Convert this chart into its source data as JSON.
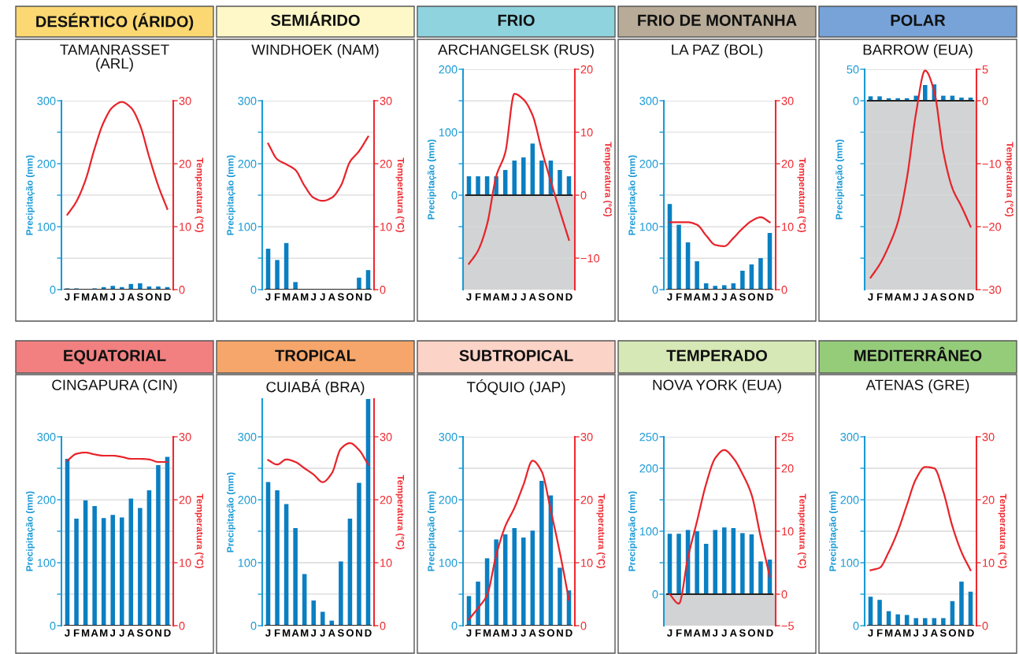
{
  "chart_data": [
    {
      "type": "bar",
      "title": "DESÉRTICO (ÁRIDO)",
      "subtitle": "TAMANRASSET\n(ARL)",
      "ylabel": "Precipitação (mm)",
      "y2label": "Temperatura (°C)",
      "categories": [
        "J",
        "F",
        "M",
        "A",
        "M",
        "J",
        "J",
        "A",
        "S",
        "O",
        "N",
        "D"
      ],
      "grid": "y",
      "ylim": [
        0,
        300
      ],
      "yticks": [
        0,
        {
          "value": 50,
          "label": null
        },
        100,
        {
          "value": 150,
          "label": null
        },
        200,
        {
          "value": 250,
          "label": null
        },
        300
      ],
      "y2lim": [
        0,
        30
      ],
      "y2ticks": [
        0,
        10,
        20,
        30
      ],
      "series": [
        {
          "type": "bar",
          "color": "#0a7fc2",
          "values": [
            2,
            2,
            0,
            2,
            4,
            6,
            4,
            9,
            10,
            5,
            5,
            4
          ]
        },
        {
          "type": "line",
          "axis": "y2",
          "color": "#e8232a",
          "values": [
            11.9,
            14,
            17.4,
            22.4,
            26.6,
            29,
            29.8,
            28.9,
            26.1,
            21.1,
            16.5,
            12.8
          ]
        }
      ]
    },
    {
      "type": "bar",
      "title": "SEMIÁRIDO",
      "subtitle": "WINDHOEK (NAM)",
      "ylabel": "Precipitação (mm)",
      "y2label": "Temperatura (°C)",
      "categories": [
        "J",
        "F",
        "M",
        "A",
        "M",
        "J",
        "J",
        "A",
        "S",
        "O",
        "N",
        "D"
      ],
      "grid": "y",
      "ylim": [
        0,
        300
      ],
      "yticks": [
        0,
        {
          "value": 50,
          "label": null
        },
        100,
        {
          "value": 150,
          "label": null
        },
        200,
        {
          "value": 250,
          "label": null
        },
        300
      ],
      "y2lim": [
        0,
        30
      ],
      "y2ticks": [
        0,
        10,
        20,
        30
      ],
      "series": [
        {
          "type": "bar",
          "color": "#0a7fc2",
          "values": [
            65,
            47,
            74,
            12,
            0,
            0,
            0,
            0,
            0,
            0,
            19,
            31
          ]
        },
        {
          "type": "line",
          "axis": "y2",
          "color": "#e8232a",
          "values": [
            23.2,
            20.7,
            19.9,
            19,
            16.5,
            14.6,
            14.1,
            14.6,
            16.5,
            20.3,
            22,
            24.3
          ]
        }
      ]
    },
    {
      "type": "bar",
      "title": "FRIO",
      "subtitle": "ARCHANGELSK (RUS)",
      "ylabel": "Precipitação (mm)",
      "y2label": "Temperatura (°C)",
      "categories": [
        "J",
        "F",
        "M",
        "A",
        "M",
        "J",
        "J",
        "A",
        "S",
        "O",
        "N",
        "D"
      ],
      "grid": "y",
      "ylim": [
        -150,
        200
      ],
      "yticks": [
        {
          "value": -100,
          "label": null
        },
        {
          "value": -50,
          "label": null
        },
        0,
        {
          "value": 50,
          "label": null
        },
        100,
        {
          "value": 150,
          "label": null
        },
        200
      ],
      "y2lim": [
        -15,
        20
      ],
      "y2ticks": [
        {
          "value": -10,
          "label": "−10"
        },
        0,
        10,
        20
      ],
      "bands": [
        {
          "axis": "y",
          "from": -150,
          "to": 0,
          "color": "#d1d3d4"
        }
      ],
      "series": [
        {
          "type": "bar",
          "color": "#0a7fc2",
          "values": [
            30,
            30,
            30,
            30,
            40,
            55,
            60,
            82,
            55,
            55,
            40,
            30
          ]
        },
        {
          "type": "line",
          "axis": "y2",
          "color": "#e8232a",
          "values": [
            -10.9,
            -8.8,
            -4.6,
            3,
            6.8,
            16.1,
            15.2,
            12.7,
            7.2,
            2.2,
            -2.5,
            -7.1
          ]
        }
      ]
    },
    {
      "type": "bar",
      "title": "FRIO DE MONTANHA",
      "subtitle": "LA PAZ (BOL)",
      "ylabel": "Precipitação (mm)",
      "y2label": "Temperatura (°C)",
      "categories": [
        "J",
        "F",
        "M",
        "A",
        "M",
        "J",
        "J",
        "A",
        "S",
        "O",
        "N",
        "D"
      ],
      "grid": "y",
      "ylim": [
        0,
        300
      ],
      "yticks": [
        0,
        {
          "value": 50,
          "label": null
        },
        100,
        {
          "value": 150,
          "label": null
        },
        200,
        {
          "value": 250,
          "label": null
        },
        300
      ],
      "y2lim": [
        0,
        30
      ],
      "y2ticks": [
        0,
        10,
        20,
        30
      ],
      "series": [
        {
          "type": "bar",
          "color": "#0a7fc2",
          "values": [
            136,
            103,
            75,
            45,
            10,
            6,
            7,
            10,
            30,
            40,
            50,
            90
          ]
        },
        {
          "type": "line",
          "axis": "y2",
          "color": "#e8232a",
          "values": [
            10.7,
            10.7,
            10.7,
            10.3,
            8.6,
            7.1,
            6.9,
            8.2,
            9.7,
            10.9,
            11.5,
            10.7
          ]
        }
      ]
    },
    {
      "type": "bar",
      "title": "POLAR",
      "subtitle": "BARROW (EUA)",
      "ylabel": "Precipitação (mm)",
      "y2label": "Temperatura (°C)",
      "categories": [
        "J",
        "F",
        "M",
        "A",
        "M",
        "J",
        "J",
        "A",
        "S",
        "O",
        "N",
        "D"
      ],
      "grid": "y",
      "ylim": [
        -300,
        50
      ],
      "yticks": [
        {
          "value": -250,
          "label": null
        },
        {
          "value": -200,
          "label": null
        },
        {
          "value": -150,
          "label": null
        },
        {
          "value": -100,
          "label": null
        },
        {
          "value": -50,
          "label": null
        },
        0,
        50
      ],
      "y2lim": [
        -30,
        5
      ],
      "y2ticks": [
        {
          "value": -30,
          "label": "−30"
        },
        {
          "value": -20,
          "label": "−20"
        },
        {
          "value": -10,
          "label": "−10"
        },
        0,
        5
      ],
      "bands": [
        {
          "axis": "y",
          "from": -300,
          "to": 0,
          "color": "#d1d3d4"
        }
      ],
      "series": [
        {
          "type": "bar",
          "color": "#0a7fc2",
          "values": [
            7,
            7,
            4,
            4,
            4,
            8,
            25,
            26,
            8,
            8,
            5,
            5
          ]
        },
        {
          "type": "line",
          "axis": "y2",
          "color": "#e8232a",
          "values": [
            -28.1,
            -26,
            -23.1,
            -19.3,
            -12.3,
            -2,
            4.8,
            1.5,
            -8.1,
            -13.9,
            -16.8,
            -20
          ]
        }
      ]
    },
    {
      "type": "bar",
      "title": "EQUATORIAL",
      "subtitle": "CINGAPURA (CIN)",
      "ylabel": "Precipitação (mm)",
      "y2label": "Temperatura (°C)",
      "categories": [
        "J",
        "F",
        "M",
        "A",
        "M",
        "J",
        "J",
        "A",
        "S",
        "O",
        "N",
        "D"
      ],
      "grid": "y",
      "ylim": [
        0,
        300
      ],
      "yticks": [
        0,
        {
          "value": 50,
          "label": null
        },
        100,
        {
          "value": 150,
          "label": null
        },
        200,
        {
          "value": 250,
          "label": null
        },
        300
      ],
      "y2lim": [
        0,
        30
      ],
      "y2ticks": [
        0,
        10,
        20,
        30
      ],
      "series": [
        {
          "type": "bar",
          "color": "#0a7fc2",
          "values": [
            265,
            170,
            199,
            190,
            171,
            176,
            172,
            202,
            187,
            215,
            255,
            268
          ]
        },
        {
          "type": "line",
          "axis": "y2",
          "color": "#e8232a",
          "values": [
            26.2,
            27.3,
            27.5,
            27.2,
            27,
            27,
            26.8,
            26.5,
            26.5,
            26.4,
            26,
            26
          ]
        }
      ]
    },
    {
      "type": "bar",
      "title": "TROPICAL",
      "subtitle": "CUIABÁ (BRA)",
      "ylabel": "Precipitação (mm)",
      "y2label": "Temperatura (°C)",
      "categories": [
        "J",
        "F",
        "M",
        "A",
        "M",
        "J",
        "J",
        "A",
        "S",
        "O",
        "N",
        "D"
      ],
      "grid": "y",
      "ylim": [
        0,
        360
      ],
      "yticks": [
        0,
        {
          "value": 50,
          "label": null
        },
        100,
        {
          "value": 150,
          "label": null
        },
        200,
        {
          "value": 250,
          "label": null
        },
        300
      ],
      "y2lim": [
        0,
        36
      ],
      "y2ticks": [
        0,
        10,
        20,
        30
      ],
      "series": [
        {
          "type": "bar",
          "color": "#0a7fc2",
          "values": [
            228,
            215,
            193,
            155,
            82,
            40,
            22,
            8,
            102,
            170,
            227,
            360
          ]
        },
        {
          "type": "line",
          "axis": "y2",
          "color": "#e8232a",
          "values": [
            26.3,
            25.6,
            26.4,
            26,
            25,
            24,
            22.8,
            24.2,
            28.1,
            29,
            27.9,
            25.6
          ]
        }
      ]
    },
    {
      "type": "bar",
      "title": "SUBTROPICAL",
      "subtitle": "TÓQUIO (JAP)",
      "ylabel": "Precipitação (mm)",
      "y2label": "Temperatura (°C)",
      "categories": [
        "J",
        "F",
        "M",
        "A",
        "M",
        "J",
        "J",
        "A",
        "S",
        "O",
        "N",
        "D"
      ],
      "grid": "y",
      "ylim": [
        0,
        300
      ],
      "yticks": [
        0,
        {
          "value": 50,
          "label": null
        },
        100,
        {
          "value": 150,
          "label": null
        },
        200,
        {
          "value": 250,
          "label": null
        },
        300
      ],
      "y2lim": [
        0,
        30
      ],
      "y2ticks": [
        0,
        10,
        20,
        30
      ],
      "series": [
        {
          "type": "bar",
          "color": "#0a7fc2",
          "values": [
            47,
            70,
            107,
            137,
            145,
            155,
            140,
            151,
            230,
            207,
            92,
            56
          ]
        },
        {
          "type": "line",
          "axis": "y2",
          "color": "#e8232a",
          "values": [
            1,
            2.8,
            4.9,
            11.2,
            15.8,
            18.7,
            22.4,
            26.2,
            24.5,
            18.3,
            11.6,
            4.1
          ]
        }
      ]
    },
    {
      "type": "bar",
      "title": "TEMPERADO",
      "subtitle": "NOVA YORK (EUA)",
      "ylabel": "Precipitação (mm)",
      "y2label": "Temperatura (°C)",
      "categories": [
        "J",
        "F",
        "M",
        "A",
        "M",
        "J",
        "J",
        "A",
        "S",
        "O",
        "N",
        "D"
      ],
      "grid": "y",
      "ylim": [
        -50,
        250
      ],
      "yticks": [
        0,
        {
          "value": 50,
          "label": null
        },
        100,
        {
          "value": 150,
          "label": null
        },
        200,
        250
      ],
      "y2lim": [
        -5,
        25
      ],
      "y2ticks": [
        {
          "value": -5,
          "label": "−5"
        },
        0,
        10,
        20,
        25
      ],
      "bands": [
        {
          "axis": "y",
          "from": -50,
          "to": 0,
          "color": "#d1d3d4"
        }
      ],
      "series": [
        {
          "type": "bar",
          "color": "#0a7fc2",
          "values": [
            96,
            96,
            102,
            100,
            80,
            102,
            106,
            105,
            97,
            95,
            52,
            55
          ]
        },
        {
          "type": "line",
          "axis": "y2",
          "color": "#e8232a",
          "values": [
            0,
            -1.5,
            5.8,
            11.6,
            17.5,
            21.6,
            22.9,
            21.6,
            19.1,
            15.8,
            9.1,
            2.8
          ]
        }
      ]
    },
    {
      "type": "bar",
      "title": "MEDITERRÂNEO",
      "subtitle": "ATENAS (GRE)",
      "ylabel": "Precipitação (mm)",
      "y2label": "Temperatura (°C)",
      "categories": [
        "J",
        "F",
        "M",
        "A",
        "M",
        "J",
        "J",
        "A",
        "S",
        "O",
        "N",
        "D"
      ],
      "grid": "y",
      "ylim": [
        0,
        300
      ],
      "yticks": [
        0,
        {
          "value": 50,
          "label": null
        },
        100,
        {
          "value": 150,
          "label": null
        },
        200,
        {
          "value": 250,
          "label": null
        },
        300
      ],
      "y2lim": [
        0,
        30
      ],
      "y2ticks": [
        0,
        10,
        20,
        30
      ],
      "series": [
        {
          "type": "bar",
          "color": "#0a7fc2",
          "values": [
            46,
            41,
            23,
            18,
            17,
            12,
            12,
            12,
            12,
            39,
            70,
            54
          ]
        },
        {
          "type": "line",
          "axis": "y2",
          "color": "#e8232a",
          "values": [
            8.8,
            9.2,
            11.7,
            15,
            19.2,
            23.3,
            25.2,
            25,
            21.3,
            15.8,
            11.7,
            8.8
          ]
        }
      ]
    }
  ]
}
